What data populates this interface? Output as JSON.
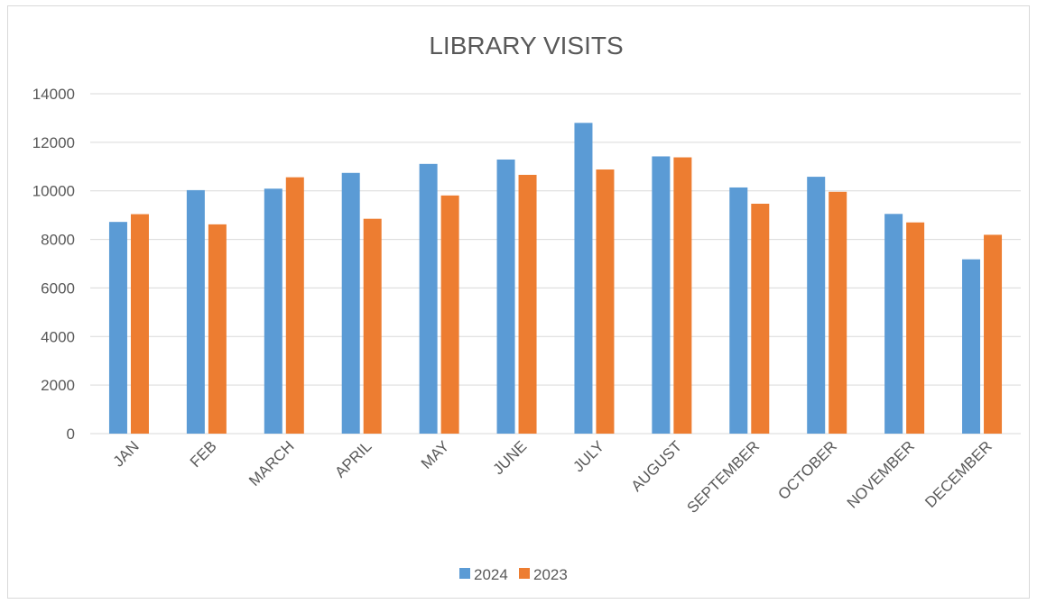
{
  "chart_data": {
    "type": "bar",
    "title": "LIBRARY VISITS",
    "xlabel": "",
    "ylabel": "",
    "categories": [
      "JAN",
      "FEB",
      "MARCH",
      "APRIL",
      "MAY",
      "JUNE",
      "JULY",
      "AUGUST",
      "SEPTEMBER",
      "OCTOBER",
      "NOVEMBER",
      "DECEMBER"
    ],
    "series": [
      {
        "name": "2024",
        "color": "#5b9bd5",
        "values": [
          8720,
          10030,
          10090,
          10740,
          11110,
          11290,
          12800,
          11420,
          10140,
          10580,
          9050,
          7180
        ]
      },
      {
        "name": "2023",
        "color": "#ed7d31",
        "values": [
          9040,
          8620,
          10560,
          8850,
          9810,
          10660,
          10880,
          11380,
          9470,
          9960,
          8700,
          8190
        ]
      }
    ],
    "ylim": [
      0,
      14000
    ],
    "yticks": [
      0,
      2000,
      4000,
      6000,
      8000,
      10000,
      12000,
      14000
    ],
    "grid": true,
    "legend_position": "bottom"
  }
}
